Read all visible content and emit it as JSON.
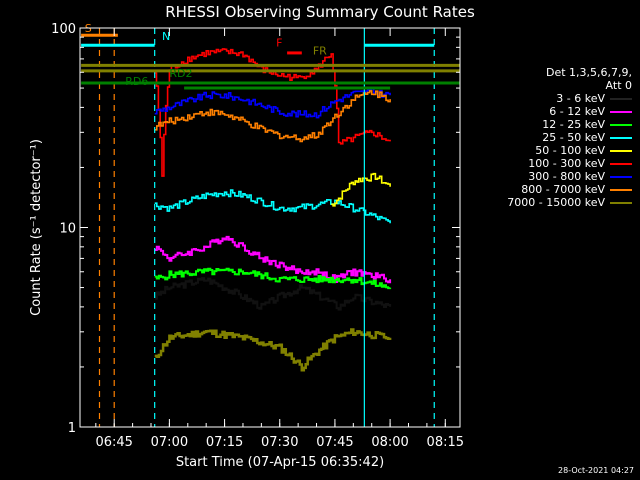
{
  "chart_data": {
    "type": "line",
    "title": "RHESSI Observing Summary Count Rates",
    "xlabel": "Start Time (07-Apr-15 06:35:42)",
    "ylabel": "Count Rate (s⁻¹ detector⁻¹)",
    "yscale": "log",
    "ylim": [
      1,
      100
    ],
    "xlim": [
      "06:35:42",
      "08:19:00"
    ],
    "x_ticks": [
      "06:45",
      "07:00",
      "07:15",
      "07:30",
      "07:45",
      "08:00",
      "08:15"
    ],
    "y_ticks": [
      "1",
      "10",
      "100"
    ],
    "legend_header": [
      "Det 1,3,5,6,7,9,",
      "Att 0"
    ],
    "legend_position": "right",
    "timestamp": "28-Oct-2021 04:27",
    "series": [
      {
        "name": "3 - 6 keV",
        "color": "#000000",
        "x": [
          "06:56",
          "07:00",
          "07:10",
          "07:15",
          "07:25",
          "07:30",
          "07:36",
          "07:46",
          "07:50",
          "08:00"
        ],
        "y": [
          4.5,
          5.0,
          5.5,
          5.0,
          4.0,
          4.5,
          5.0,
          4.0,
          4.5,
          4.0
        ]
      },
      {
        "name": "6 - 12 keV",
        "color": "#ff00ff",
        "x": [
          "06:56",
          "07:00",
          "07:05",
          "07:10",
          "07:15",
          "07:20",
          "07:25",
          "07:30",
          "07:35",
          "07:40",
          "07:45",
          "07:50",
          "08:00"
        ],
        "y": [
          8.0,
          7.0,
          7.5,
          8.0,
          9.0,
          8.0,
          7.0,
          6.5,
          6.0,
          6.0,
          5.5,
          6.0,
          5.5
        ]
      },
      {
        "name": "12 - 25 keV",
        "color": "#00ff00",
        "x": [
          "06:56",
          "07:00",
          "07:10",
          "07:20",
          "07:30",
          "07:40",
          "07:50",
          "08:00"
        ],
        "y": [
          5.5,
          5.8,
          6.0,
          6.0,
          5.5,
          5.5,
          5.5,
          5.0
        ]
      },
      {
        "name": "25 - 50 keV",
        "color": "#00ffff",
        "x": [
          "06:56",
          "07:00",
          "07:05",
          "07:10",
          "07:15",
          "07:20",
          "07:25",
          "07:30",
          "07:35",
          "07:40",
          "07:45",
          "07:50",
          "07:55",
          "08:00"
        ],
        "y": [
          13.0,
          12.5,
          13.5,
          14.5,
          15.0,
          14.5,
          13.5,
          12.5,
          12.5,
          13.0,
          13.5,
          12.5,
          11.5,
          10.5
        ]
      },
      {
        "name": "50 - 100 keV",
        "color": "#ffff00",
        "x": [
          "07:44",
          "07:46",
          "07:48",
          "07:50",
          "07:52",
          "07:56",
          "08:00"
        ],
        "y": [
          13.0,
          14.0,
          15.5,
          17.0,
          17.5,
          18.0,
          16.0
        ]
      },
      {
        "name": "100 - 300 keV",
        "color": "#ff0000",
        "x": [
          "06:56",
          "06:58",
          "07:00",
          "07:05",
          "07:10",
          "07:15",
          "07:20",
          "07:25",
          "07:30",
          "07:35",
          "07:40",
          "07:44",
          "07:46",
          "07:50",
          "07:55",
          "08:00"
        ],
        "y": [
          60,
          18,
          62,
          70,
          75,
          76,
          74,
          62,
          58,
          56,
          62,
          75,
          26,
          28,
          30,
          27
        ]
      },
      {
        "name": "300 - 800 keV",
        "color": "#0000ff",
        "x": [
          "06:56",
          "07:00",
          "07:05",
          "07:10",
          "07:15",
          "07:20",
          "07:25",
          "07:30",
          "07:35",
          "07:40",
          "07:45",
          "07:50",
          "07:55",
          "08:00"
        ],
        "y": [
          38,
          40,
          43,
          46,
          46,
          44,
          41,
          38,
          37,
          37,
          43,
          47,
          48,
          46
        ]
      },
      {
        "name": "800 - 7000 keV",
        "color": "#ff8000",
        "x": [
          "06:56",
          "07:00",
          "07:05",
          "07:10",
          "07:15",
          "07:20",
          "07:25",
          "07:30",
          "07:35",
          "07:40",
          "07:45",
          "07:50",
          "07:55",
          "08:00"
        ],
        "y": [
          32,
          34,
          36,
          38,
          37,
          34,
          31,
          29,
          28,
          29,
          36,
          44,
          48,
          44
        ]
      },
      {
        "name": "7000 - 15000 keV",
        "color": "#808000",
        "x": [
          "06:56",
          "07:00",
          "07:10",
          "07:20",
          "07:30",
          "07:36",
          "07:45",
          "07:50",
          "08:00"
        ],
        "y": [
          2.2,
          2.8,
          3.0,
          2.8,
          2.5,
          2.0,
          2.8,
          3.0,
          2.8
        ]
      }
    ],
    "annotations": [
      "S",
      "N",
      "RD6",
      "RD2",
      "F",
      "FR"
    ]
  }
}
